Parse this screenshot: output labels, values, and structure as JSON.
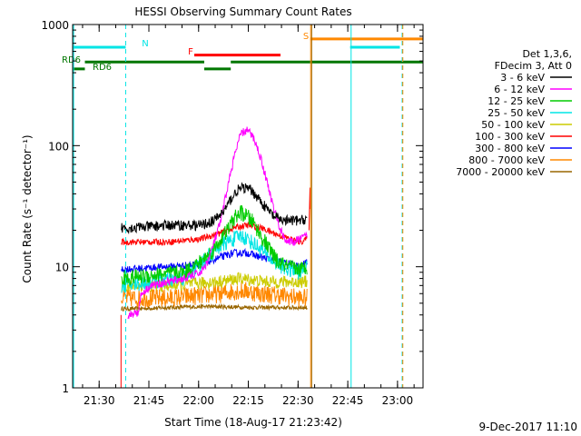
{
  "chart_data": {
    "type": "line",
    "title": "HESSI Observing Summary Count Rates",
    "xlabel": "Start Time (18-Aug-17 21:23:42)",
    "ylabel": "Count Rate (s⁻¹ detector⁻¹)",
    "yscale": "log",
    "ylim": [
      1,
      1000
    ],
    "xlim_minutes": [
      21.3,
      127.0
    ],
    "x_ticks": [
      "21:30",
      "21:45",
      "22:00",
      "22:15",
      "22:30",
      "22:45",
      "23:00"
    ],
    "y_ticks": [
      "1",
      "10",
      "100",
      "1000"
    ],
    "footer": "9-Dec-2017 11:10",
    "legend": {
      "placement": "right",
      "header": [
        "Det 1,3,6,",
        "FDecim 3, Att 0"
      ],
      "entries": [
        {
          "label": "3 - 6 keV",
          "color": "#000000"
        },
        {
          "label": "6 - 12 keV",
          "color": "#ff00ff"
        },
        {
          "label": "12 - 25 keV",
          "color": "#00cc00"
        },
        {
          "label": "25 - 50 keV",
          "color": "#00e5e5"
        },
        {
          "label": "50 - 100 keV",
          "color": "#cccc00"
        },
        {
          "label": "100 - 300 keV",
          "color": "#ff0000"
        },
        {
          "label": "300 - 800 keV",
          "color": "#0000ff"
        },
        {
          "label": "800 - 7000 keV",
          "color": "#ff8800"
        },
        {
          "label": "7000 - 20000 keV",
          "color": "#996600"
        }
      ]
    },
    "series": [
      {
        "name": "3 - 6 keV",
        "color": "#000000",
        "x": [
          36,
          40,
          50,
          60,
          64,
          67,
          69,
          71,
          73,
          75,
          77,
          79,
          82,
          85,
          90,
          92
        ],
        "y": [
          21,
          21,
          22,
          22,
          24,
          29,
          36,
          43,
          45,
          43,
          38,
          32,
          26,
          24,
          24,
          25
        ],
        "noise": 0.1
      },
      {
        "name": "6 - 12 keV",
        "color": "#ff00ff",
        "x": [
          38,
          41,
          42,
          45,
          50,
          55,
          60,
          62,
          64,
          66,
          68,
          70,
          72,
          74,
          76,
          78,
          80,
          82,
          84,
          86,
          88,
          90,
          92
        ],
        "y": [
          4,
          4.2,
          6,
          7,
          7.5,
          8,
          9,
          11,
          16,
          24,
          45,
          80,
          125,
          135,
          115,
          80,
          50,
          30,
          20,
          16,
          16,
          17,
          18
        ],
        "noise": 0.08
      },
      {
        "name": "12 - 25 keV",
        "color": "#00cc00",
        "x": [
          36,
          45,
          55,
          60,
          64,
          68,
          70,
          72,
          74,
          76,
          78,
          80,
          83,
          86,
          90,
          92
        ],
        "y": [
          8,
          8.5,
          9,
          11,
          14,
          20,
          25,
          28,
          26,
          23,
          18,
          15,
          11,
          10,
          9.5,
          10
        ],
        "noise": 0.15
      },
      {
        "name": "25 - 50 keV",
        "color": "#00e5e5",
        "x": [
          36,
          45,
          55,
          62,
          66,
          70,
          72,
          74,
          78,
          82,
          86,
          90,
          92
        ],
        "y": [
          7,
          7.5,
          8,
          12,
          15,
          17,
          18,
          17,
          14,
          11,
          9.5,
          9,
          10
        ],
        "noise": 0.15
      },
      {
        "name": "50 - 100 keV",
        "color": "#cccc00",
        "x": [
          36,
          50,
          65,
          72,
          80,
          92
        ],
        "y": [
          7,
          7,
          7.5,
          8,
          7.5,
          7.5
        ],
        "noise": 0.12
      },
      {
        "name": "100 - 300 keV",
        "color": "#ff0000",
        "x": [
          36,
          50,
          60,
          66,
          70,
          74,
          78,
          84,
          90,
          92
        ],
        "y": [
          16,
          16,
          17,
          19,
          21,
          22,
          21,
          18,
          16,
          17
        ],
        "noise": 0.06
      },
      {
        "name": "300 - 800 keV",
        "color": "#0000ff",
        "x": [
          36,
          50,
          60,
          66,
          70,
          74,
          78,
          84,
          90,
          92
        ],
        "y": [
          9.5,
          10,
          10.5,
          12,
          13,
          13,
          12,
          11,
          10,
          11
        ],
        "noise": 0.07
      },
      {
        "name": "800 - 7000 keV",
        "color": "#ff8800",
        "x": [
          36,
          50,
          60,
          66,
          70,
          74,
          78,
          84,
          90,
          92
        ],
        "y": [
          5.5,
          5.5,
          5.8,
          6,
          6.3,
          6.3,
          6,
          5.8,
          5.5,
          5.5
        ],
        "noise": 0.18
      },
      {
        "name": "7000 - 20000 keV",
        "color": "#996600",
        "x": [
          36,
          40,
          60,
          80,
          92
        ],
        "y": [
          4.5,
          4.5,
          4.7,
          4.6,
          4.6
        ],
        "noise": 0.04
      }
    ],
    "flags": [
      {
        "label": "N",
        "color": "#00e5e5",
        "segments": [
          [
            21.3,
            37.3
          ],
          [
            105,
            120
          ]
        ],
        "level": 650
      },
      {
        "label": "F",
        "color": "#ff0000",
        "segments": [
          [
            58,
            84
          ]
        ],
        "level": 560
      },
      {
        "label": "S",
        "color": "#ff8800",
        "segments": [
          [
            93,
            127
          ]
        ],
        "level": 760
      },
      {
        "label": "RD6",
        "color": "#007700",
        "segments": [
          [
            25,
            61
          ],
          [
            69,
            127
          ]
        ],
        "level": 490
      },
      {
        "label": "RD6",
        "color": "#007700",
        "segments": [
          [
            21.3,
            25
          ],
          [
            61,
            69
          ]
        ],
        "level": 430
      }
    ],
    "vlines": [
      {
        "x": 21.6,
        "color": "#00e5e5",
        "dashed": false
      },
      {
        "x": 37.3,
        "color": "#00e5e5",
        "dashed": true
      },
      {
        "x": 93.1,
        "color": "#ff8800",
        "dashed": false
      },
      {
        "x": 93.4,
        "color": "#996600",
        "dashed": false
      },
      {
        "x": 105.3,
        "color": "#00e5e5",
        "dashed": false
      },
      {
        "x": 120.7,
        "color": "#00e5e5",
        "dashed": true
      },
      {
        "x": 120.9,
        "color": "#ff8800",
        "dashed": true
      }
    ]
  }
}
